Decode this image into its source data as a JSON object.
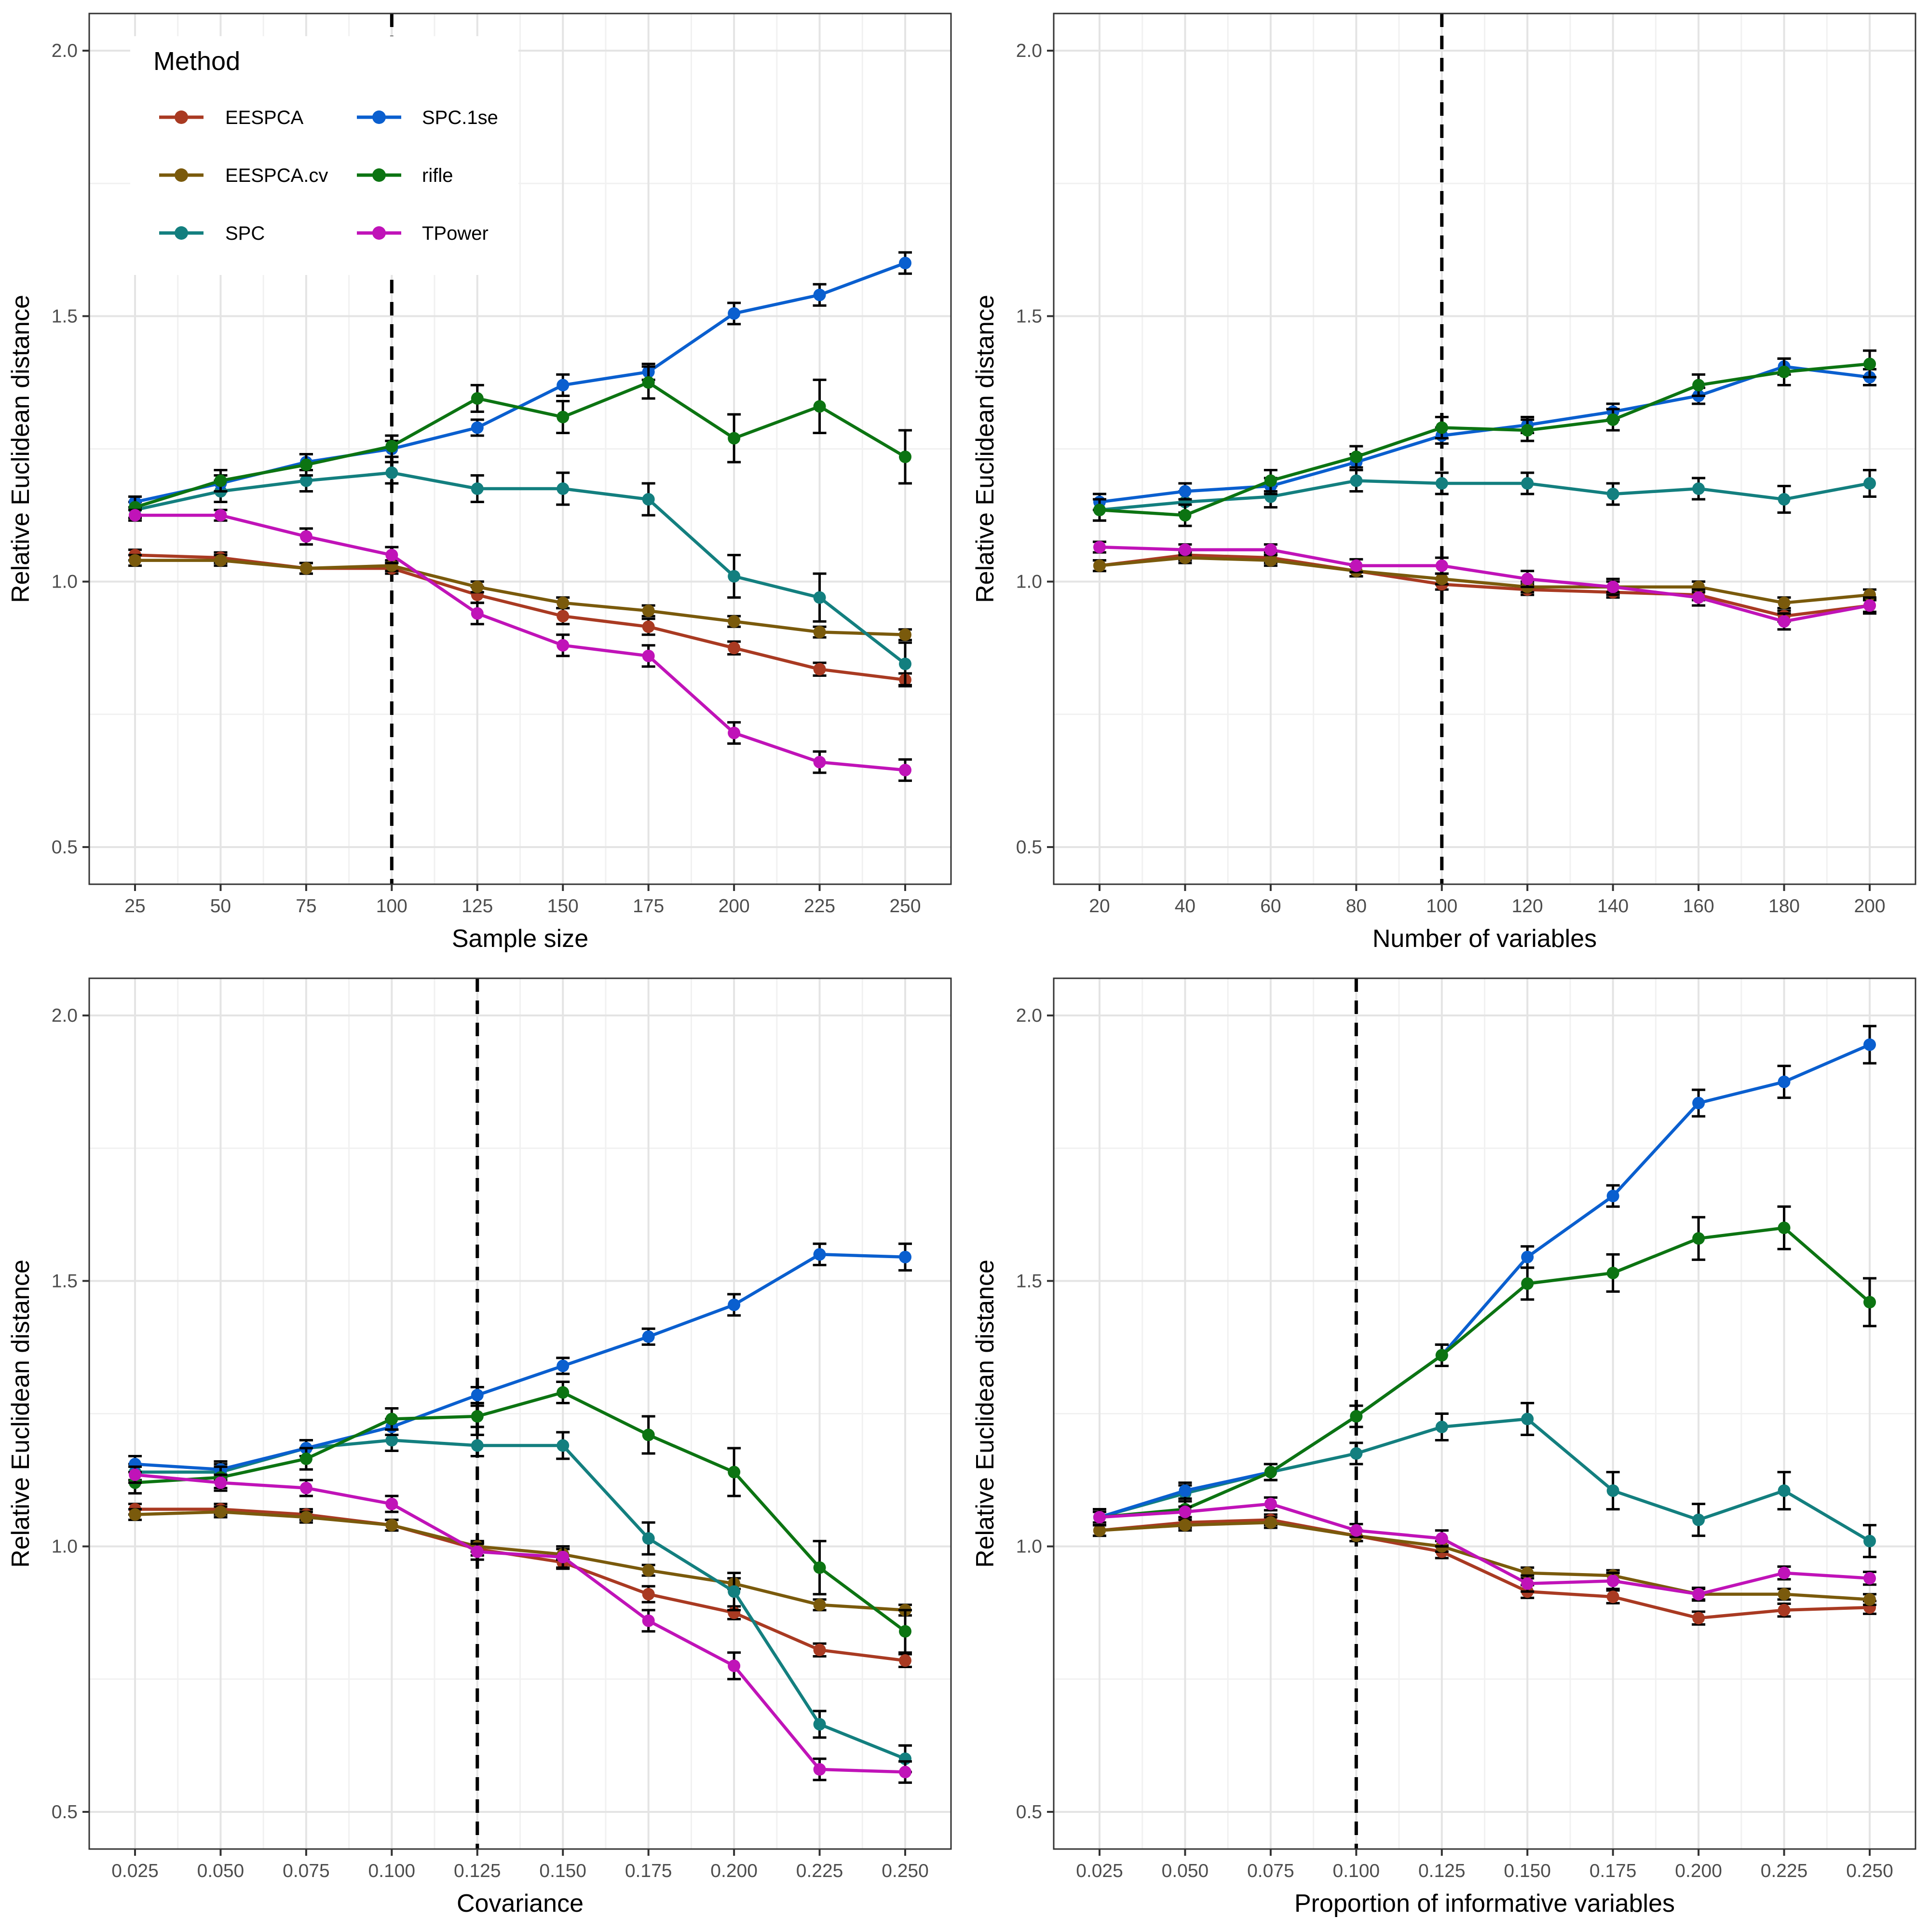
{
  "legend": {
    "title": "Method"
  },
  "methods": [
    {
      "name": "EESPCA",
      "color": "#a93a22"
    },
    {
      "name": "EESPCA.cv",
      "color": "#7a5a0c"
    },
    {
      "name": "SPC",
      "color": "#137f7f"
    },
    {
      "name": "SPC.1se",
      "color": "#0a5fcf"
    },
    {
      "name": "rifle",
      "color": "#0c7412"
    },
    {
      "name": "TPower",
      "color": "#c013b8"
    }
  ],
  "chart_data": [
    {
      "type": "line",
      "xlabel": "Sample size",
      "ylabel": "Relative Euclidean distance",
      "tick_labels": [
        "25",
        "50",
        "75",
        "100",
        "125",
        "150",
        "175",
        "200",
        "225",
        "250"
      ],
      "ylim": [
        0.43,
        2.07
      ],
      "yticks": [
        0.5,
        1.0,
        1.5,
        2.0
      ],
      "ytick_labels": [
        "0.5",
        "1.0",
        "1.5",
        "2.0"
      ],
      "reference_line_index": 3,
      "series": [
        {
          "name": "EESPCA",
          "values": [
            1.05,
            1.045,
            1.025,
            1.025,
            0.975,
            0.935,
            0.915,
            0.875,
            0.835,
            0.815
          ],
          "err": [
            0.01,
            0.01,
            0.01,
            0.01,
            0.015,
            0.015,
            0.015,
            0.012,
            0.012,
            0.012
          ]
        },
        {
          "name": "EESPCA.cv",
          "values": [
            1.04,
            1.04,
            1.025,
            1.03,
            0.99,
            0.96,
            0.945,
            0.925,
            0.905,
            0.9
          ],
          "err": [
            0.01,
            0.01,
            0.01,
            0.01,
            0.01,
            0.01,
            0.01,
            0.01,
            0.01,
            0.01
          ]
        },
        {
          "name": "SPC",
          "values": [
            1.135,
            1.17,
            1.19,
            1.205,
            1.175,
            1.175,
            1.155,
            1.01,
            0.97,
            0.845
          ],
          "err": [
            0.015,
            0.02,
            0.02,
            0.02,
            0.025,
            0.03,
            0.03,
            0.04,
            0.045,
            0.04
          ]
        },
        {
          "name": "SPC.1se",
          "values": [
            1.15,
            1.185,
            1.225,
            1.25,
            1.29,
            1.37,
            1.395,
            1.505,
            1.54,
            1.6
          ],
          "err": [
            0.01,
            0.015,
            0.015,
            0.015,
            0.015,
            0.02,
            0.015,
            0.02,
            0.02,
            0.02
          ]
        },
        {
          "name": "rifle",
          "values": [
            1.14,
            1.19,
            1.22,
            1.255,
            1.345,
            1.31,
            1.375,
            1.27,
            1.33,
            1.235
          ],
          "err": [
            0.02,
            0.02,
            0.02,
            0.02,
            0.025,
            0.03,
            0.03,
            0.045,
            0.05,
            0.05
          ]
        },
        {
          "name": "TPower",
          "values": [
            1.125,
            1.125,
            1.085,
            1.05,
            0.94,
            0.88,
            0.86,
            0.715,
            0.66,
            0.645
          ],
          "err": [
            0.01,
            0.01,
            0.015,
            0.015,
            0.02,
            0.02,
            0.02,
            0.02,
            0.02,
            0.02
          ]
        }
      ]
    },
    {
      "type": "line",
      "xlabel": "Number of variables",
      "ylabel": "Relative Euclidean distance",
      "tick_labels": [
        "20",
        "40",
        "60",
        "80",
        "100",
        "120",
        "140",
        "160",
        "180",
        "200"
      ],
      "ylim": [
        0.43,
        2.07
      ],
      "yticks": [
        0.5,
        1.0,
        1.5,
        2.0
      ],
      "ytick_labels": [
        "0.5",
        "1.0",
        "1.5",
        "2.0"
      ],
      "reference_line_index": 4,
      "series": [
        {
          "name": "EESPCA",
          "values": [
            1.03,
            1.05,
            1.045,
            1.02,
            0.995,
            0.985,
            0.98,
            0.975,
            0.935,
            0.955
          ],
          "err": [
            0.01,
            0.01,
            0.01,
            0.01,
            0.01,
            0.01,
            0.01,
            0.01,
            0.01,
            0.012
          ]
        },
        {
          "name": "EESPCA.cv",
          "values": [
            1.03,
            1.045,
            1.04,
            1.02,
            1.005,
            0.99,
            0.99,
            0.99,
            0.96,
            0.975
          ],
          "err": [
            0.01,
            0.01,
            0.01,
            0.01,
            0.01,
            0.01,
            0.01,
            0.01,
            0.01,
            0.01
          ]
        },
        {
          "name": "SPC",
          "values": [
            1.135,
            1.15,
            1.16,
            1.19,
            1.185,
            1.185,
            1.165,
            1.175,
            1.155,
            1.185
          ],
          "err": [
            0.02,
            0.02,
            0.02,
            0.02,
            0.02,
            0.02,
            0.02,
            0.02,
            0.025,
            0.025
          ]
        },
        {
          "name": "SPC.1se",
          "values": [
            1.15,
            1.17,
            1.18,
            1.225,
            1.275,
            1.295,
            1.32,
            1.35,
            1.405,
            1.385
          ],
          "err": [
            0.015,
            0.015,
            0.015,
            0.015,
            0.015,
            0.015,
            0.015,
            0.015,
            0.015,
            0.015
          ]
        },
        {
          "name": "rifle",
          "values": [
            1.135,
            1.125,
            1.19,
            1.235,
            1.29,
            1.285,
            1.305,
            1.37,
            1.395,
            1.41
          ],
          "err": [
            0.02,
            0.02,
            0.02,
            0.02,
            0.02,
            0.02,
            0.02,
            0.02,
            0.025,
            0.025
          ]
        },
        {
          "name": "TPower",
          "values": [
            1.065,
            1.06,
            1.06,
            1.03,
            1.03,
            1.005,
            0.99,
            0.97,
            0.925,
            0.955
          ],
          "err": [
            0.01,
            0.01,
            0.01,
            0.012,
            0.015,
            0.015,
            0.015,
            0.015,
            0.015,
            0.015
          ]
        }
      ]
    },
    {
      "type": "line",
      "xlabel": "Covariance",
      "ylabel": "Relative Euclidean distance",
      "tick_labels": [
        "0.025",
        "0.050",
        "0.075",
        "0.100",
        "0.125",
        "0.150",
        "0.175",
        "0.200",
        "0.225",
        "0.250"
      ],
      "ylim": [
        0.43,
        2.07
      ],
      "yticks": [
        0.5,
        1.0,
        1.5,
        2.0
      ],
      "ytick_labels": [
        "0.5",
        "1.0",
        "1.5",
        "2.0"
      ],
      "reference_line_index": 4,
      "series": [
        {
          "name": "EESPCA",
          "values": [
            1.07,
            1.07,
            1.06,
            1.04,
            0.995,
            0.97,
            0.91,
            0.875,
            0.805,
            0.785
          ],
          "err": [
            0.01,
            0.01,
            0.01,
            0.01,
            0.012,
            0.012,
            0.015,
            0.012,
            0.012,
            0.012
          ]
        },
        {
          "name": "EESPCA.cv",
          "values": [
            1.06,
            1.065,
            1.055,
            1.04,
            1.0,
            0.985,
            0.955,
            0.93,
            0.89,
            0.88
          ],
          "err": [
            0.01,
            0.01,
            0.01,
            0.01,
            0.01,
            0.01,
            0.01,
            0.01,
            0.01,
            0.01
          ]
        },
        {
          "name": "SPC",
          "values": [
            1.14,
            1.14,
            1.185,
            1.2,
            1.19,
            1.19,
            1.015,
            0.915,
            0.665,
            0.6
          ],
          "err": [
            0.015,
            0.015,
            0.015,
            0.02,
            0.02,
            0.025,
            0.03,
            0.035,
            0.025,
            0.025
          ]
        },
        {
          "name": "SPC.1se",
          "values": [
            1.155,
            1.145,
            1.185,
            1.225,
            1.285,
            1.34,
            1.395,
            1.455,
            1.55,
            1.545
          ],
          "err": [
            0.015,
            0.015,
            0.015,
            0.015,
            0.015,
            0.015,
            0.015,
            0.02,
            0.02,
            0.025
          ]
        },
        {
          "name": "rifle",
          "values": [
            1.12,
            1.13,
            1.165,
            1.24,
            1.245,
            1.29,
            1.21,
            1.14,
            0.96,
            0.84
          ],
          "err": [
            0.02,
            0.02,
            0.02,
            0.02,
            0.02,
            0.02,
            0.035,
            0.045,
            0.05,
            0.04
          ]
        },
        {
          "name": "TPower",
          "values": [
            1.135,
            1.12,
            1.11,
            1.08,
            0.99,
            0.98,
            0.86,
            0.775,
            0.58,
            0.575
          ],
          "err": [
            0.015,
            0.015,
            0.015,
            0.015,
            0.015,
            0.02,
            0.02,
            0.025,
            0.02,
            0.02
          ]
        }
      ]
    },
    {
      "type": "line",
      "xlabel": "Proportion of informative variables",
      "ylabel": "Relative Euclidean distance",
      "tick_labels": [
        "0.025",
        "0.050",
        "0.075",
        "0.100",
        "0.125",
        "0.150",
        "0.175",
        "0.200",
        "0.225",
        "0.250"
      ],
      "ylim": [
        0.43,
        2.07
      ],
      "yticks": [
        0.5,
        1.0,
        1.5,
        2.0
      ],
      "ytick_labels": [
        "0.5",
        "1.0",
        "1.5",
        "2.0"
      ],
      "reference_line_index": 3,
      "series": [
        {
          "name": "EESPCA",
          "values": [
            1.03,
            1.045,
            1.05,
            1.02,
            0.99,
            0.915,
            0.905,
            0.865,
            0.88,
            0.885
          ],
          "err": [
            0.01,
            0.01,
            0.01,
            0.01,
            0.012,
            0.012,
            0.012,
            0.012,
            0.012,
            0.012
          ]
        },
        {
          "name": "EESPCA.cv",
          "values": [
            1.03,
            1.04,
            1.045,
            1.02,
            1.0,
            0.95,
            0.945,
            0.91,
            0.91,
            0.9
          ],
          "err": [
            0.01,
            0.01,
            0.01,
            0.01,
            0.01,
            0.01,
            0.01,
            0.01,
            0.01,
            0.01
          ]
        },
        {
          "name": "SPC",
          "values": [
            1.055,
            1.1,
            1.14,
            1.175,
            1.225,
            1.24,
            1.105,
            1.05,
            1.105,
            1.01
          ],
          "err": [
            0.015,
            0.015,
            0.015,
            0.02,
            0.025,
            0.03,
            0.035,
            0.03,
            0.035,
            0.03
          ]
        },
        {
          "name": "SPC.1se",
          "values": [
            1.055,
            1.105,
            1.14,
            1.245,
            1.36,
            1.545,
            1.66,
            1.835,
            1.875,
            1.945
          ],
          "err": [
            0.015,
            0.015,
            0.015,
            0.02,
            0.02,
            0.02,
            0.02,
            0.025,
            0.03,
            0.035
          ]
        },
        {
          "name": "rifle",
          "values": [
            1.055,
            1.07,
            1.14,
            1.245,
            1.36,
            1.495,
            1.515,
            1.58,
            1.6,
            1.46
          ],
          "err": [
            0.015,
            0.015,
            0.015,
            0.02,
            0.02,
            0.03,
            0.035,
            0.04,
            0.04,
            0.045
          ]
        },
        {
          "name": "TPower",
          "values": [
            1.055,
            1.065,
            1.08,
            1.03,
            1.015,
            0.93,
            0.935,
            0.91,
            0.95,
            0.94
          ],
          "err": [
            0.01,
            0.01,
            0.012,
            0.012,
            0.015,
            0.015,
            0.015,
            0.012,
            0.012,
            0.012
          ]
        }
      ]
    }
  ]
}
